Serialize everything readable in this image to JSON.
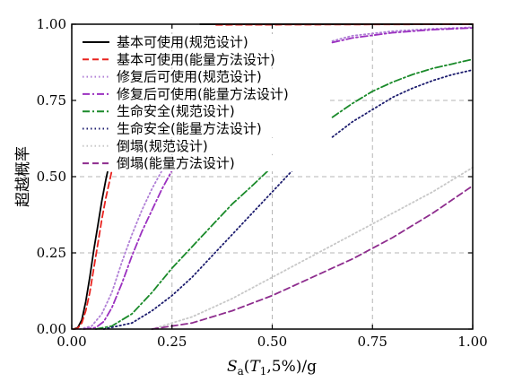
{
  "chart_data": {
    "type": "line",
    "xlabel": "Sa(T1,5%)/g",
    "xlabel_parts": {
      "var": "S",
      "sub": "a",
      "open": "(",
      "t": "T",
      "tsub": "1",
      "rest": ",5%)/g"
    },
    "ylabel": "超越概率",
    "xlim": [
      0,
      1
    ],
    "ylim": [
      0,
      1
    ],
    "x_ticks": [
      0,
      0.25,
      0.5,
      0.75,
      1.0
    ],
    "x_tick_labels": [
      "0.00",
      "0.25",
      "0.50",
      "0.75",
      "1.00"
    ],
    "y_ticks": [
      0,
      0.25,
      0.5,
      0.75,
      1.0
    ],
    "y_tick_labels": [
      "0.00",
      "0.25",
      "0.50",
      "0.75",
      "1.00"
    ],
    "grid": true,
    "legend_position": "top-left",
    "series": [
      {
        "name": "基本可使用(规范设计)",
        "color": "#000000",
        "dash": "solid",
        "segments": [
          [
            [
              0.005,
              0.0
            ],
            [
              0.015,
              0.005
            ],
            [
              0.025,
              0.03
            ],
            [
              0.035,
              0.09
            ],
            [
              0.045,
              0.17
            ],
            [
              0.055,
              0.26
            ],
            [
              0.065,
              0.34
            ],
            [
              0.075,
              0.42
            ],
            [
              0.085,
              0.49
            ],
            [
              0.09,
              0.52
            ]
          ],
          [
            [
              0.32,
              1.0
            ],
            [
              1.0,
              1.0
            ]
          ]
        ]
      },
      {
        "name": "基本可使用(能量方法设计)",
        "color": "#e8231f",
        "dash": "dashed",
        "segments": [
          [
            [
              0.005,
              0.0
            ],
            [
              0.015,
              0.003
            ],
            [
              0.025,
              0.02
            ],
            [
              0.035,
              0.06
            ],
            [
              0.045,
              0.12
            ],
            [
              0.055,
              0.2
            ],
            [
              0.065,
              0.28
            ],
            [
              0.075,
              0.36
            ],
            [
              0.085,
              0.43
            ],
            [
              0.095,
              0.49
            ],
            [
              0.1,
              0.52
            ]
          ],
          [
            [
              0.36,
              0.998
            ],
            [
              1.0,
              1.0
            ]
          ]
        ]
      },
      {
        "name": "修复后可使用(规范设计)",
        "color": "#b07fd6",
        "dash": "dotted",
        "segments": [
          [
            [
              0.02,
              0.0
            ],
            [
              0.05,
              0.01
            ],
            [
              0.075,
              0.05
            ],
            [
              0.1,
              0.12
            ],
            [
              0.125,
              0.22
            ],
            [
              0.15,
              0.31
            ],
            [
              0.175,
              0.39
            ],
            [
              0.2,
              0.46
            ],
            [
              0.225,
              0.52
            ]
          ],
          [
            [
              0.65,
              0.945
            ],
            [
              0.7,
              0.962
            ],
            [
              0.8,
              0.977
            ],
            [
              0.9,
              0.985
            ],
            [
              1.0,
              0.99
            ]
          ]
        ]
      },
      {
        "name": "修复后可使用(能量方法设计)",
        "color": "#9b30c0",
        "dash": "dashdot",
        "segments": [
          [
            [
              0.03,
              0.0
            ],
            [
              0.06,
              0.005
            ],
            [
              0.08,
              0.025
            ],
            [
              0.1,
              0.07
            ],
            [
              0.125,
              0.15
            ],
            [
              0.15,
              0.24
            ],
            [
              0.175,
              0.32
            ],
            [
              0.2,
              0.39
            ],
            [
              0.225,
              0.46
            ],
            [
              0.25,
              0.52
            ]
          ],
          [
            [
              0.65,
              0.94
            ],
            [
              0.7,
              0.955
            ],
            [
              0.8,
              0.972
            ],
            [
              0.9,
              0.982
            ],
            [
              1.0,
              0.988
            ]
          ]
        ]
      },
      {
        "name": "生命安全(规范设计)",
        "color": "#1a8a2a",
        "dash": "dashdot",
        "segments": [
          [
            [
              0.06,
              0.0
            ],
            [
              0.1,
              0.01
            ],
            [
              0.15,
              0.05
            ],
            [
              0.2,
              0.12
            ],
            [
              0.25,
              0.2
            ],
            [
              0.3,
              0.27
            ],
            [
              0.35,
              0.34
            ],
            [
              0.4,
              0.41
            ],
            [
              0.45,
              0.47
            ],
            [
              0.49,
              0.52
            ]
          ],
          [
            [
              0.65,
              0.695
            ],
            [
              0.7,
              0.74
            ],
            [
              0.75,
              0.78
            ],
            [
              0.8,
              0.81
            ],
            [
              0.85,
              0.835
            ],
            [
              0.9,
              0.855
            ],
            [
              0.95,
              0.87
            ],
            [
              1.0,
              0.885
            ]
          ]
        ]
      },
      {
        "name": "生命安全(能量方法设计)",
        "color": "#1c1c6e",
        "dash": "dotted",
        "segments": [
          [
            [
              0.08,
              0.0
            ],
            [
              0.15,
              0.02
            ],
            [
              0.2,
              0.06
            ],
            [
              0.25,
              0.11
            ],
            [
              0.3,
              0.17
            ],
            [
              0.35,
              0.24
            ],
            [
              0.4,
              0.31
            ],
            [
              0.45,
              0.38
            ],
            [
              0.5,
              0.45
            ],
            [
              0.55,
              0.52
            ]
          ],
          [
            [
              0.65,
              0.63
            ],
            [
              0.7,
              0.68
            ],
            [
              0.75,
              0.72
            ],
            [
              0.8,
              0.76
            ],
            [
              0.85,
              0.79
            ],
            [
              0.9,
              0.815
            ],
            [
              0.95,
              0.835
            ],
            [
              1.0,
              0.85
            ]
          ]
        ]
      },
      {
        "name": "倒塌(规范设计)",
        "color": "#c8c8c8",
        "dash": "dotted",
        "segments": [
          [
            [
              0.2,
              0.0
            ],
            [
              0.3,
              0.04
            ],
            [
              0.4,
              0.1
            ],
            [
              0.5,
              0.17
            ],
            [
              0.6,
              0.24
            ],
            [
              0.7,
              0.31
            ],
            [
              0.8,
              0.38
            ],
            [
              0.9,
              0.45
            ],
            [
              1.0,
              0.53
            ]
          ]
        ]
      },
      {
        "name": "倒塌(能量方法设计)",
        "color": "#8e2d8e",
        "dash": "dashed",
        "segments": [
          [
            [
              0.2,
              0.0
            ],
            [
              0.3,
              0.02
            ],
            [
              0.4,
              0.06
            ],
            [
              0.5,
              0.11
            ],
            [
              0.6,
              0.17
            ],
            [
              0.7,
              0.23
            ],
            [
              0.8,
              0.3
            ],
            [
              0.9,
              0.38
            ],
            [
              1.0,
              0.47
            ]
          ]
        ]
      }
    ]
  }
}
